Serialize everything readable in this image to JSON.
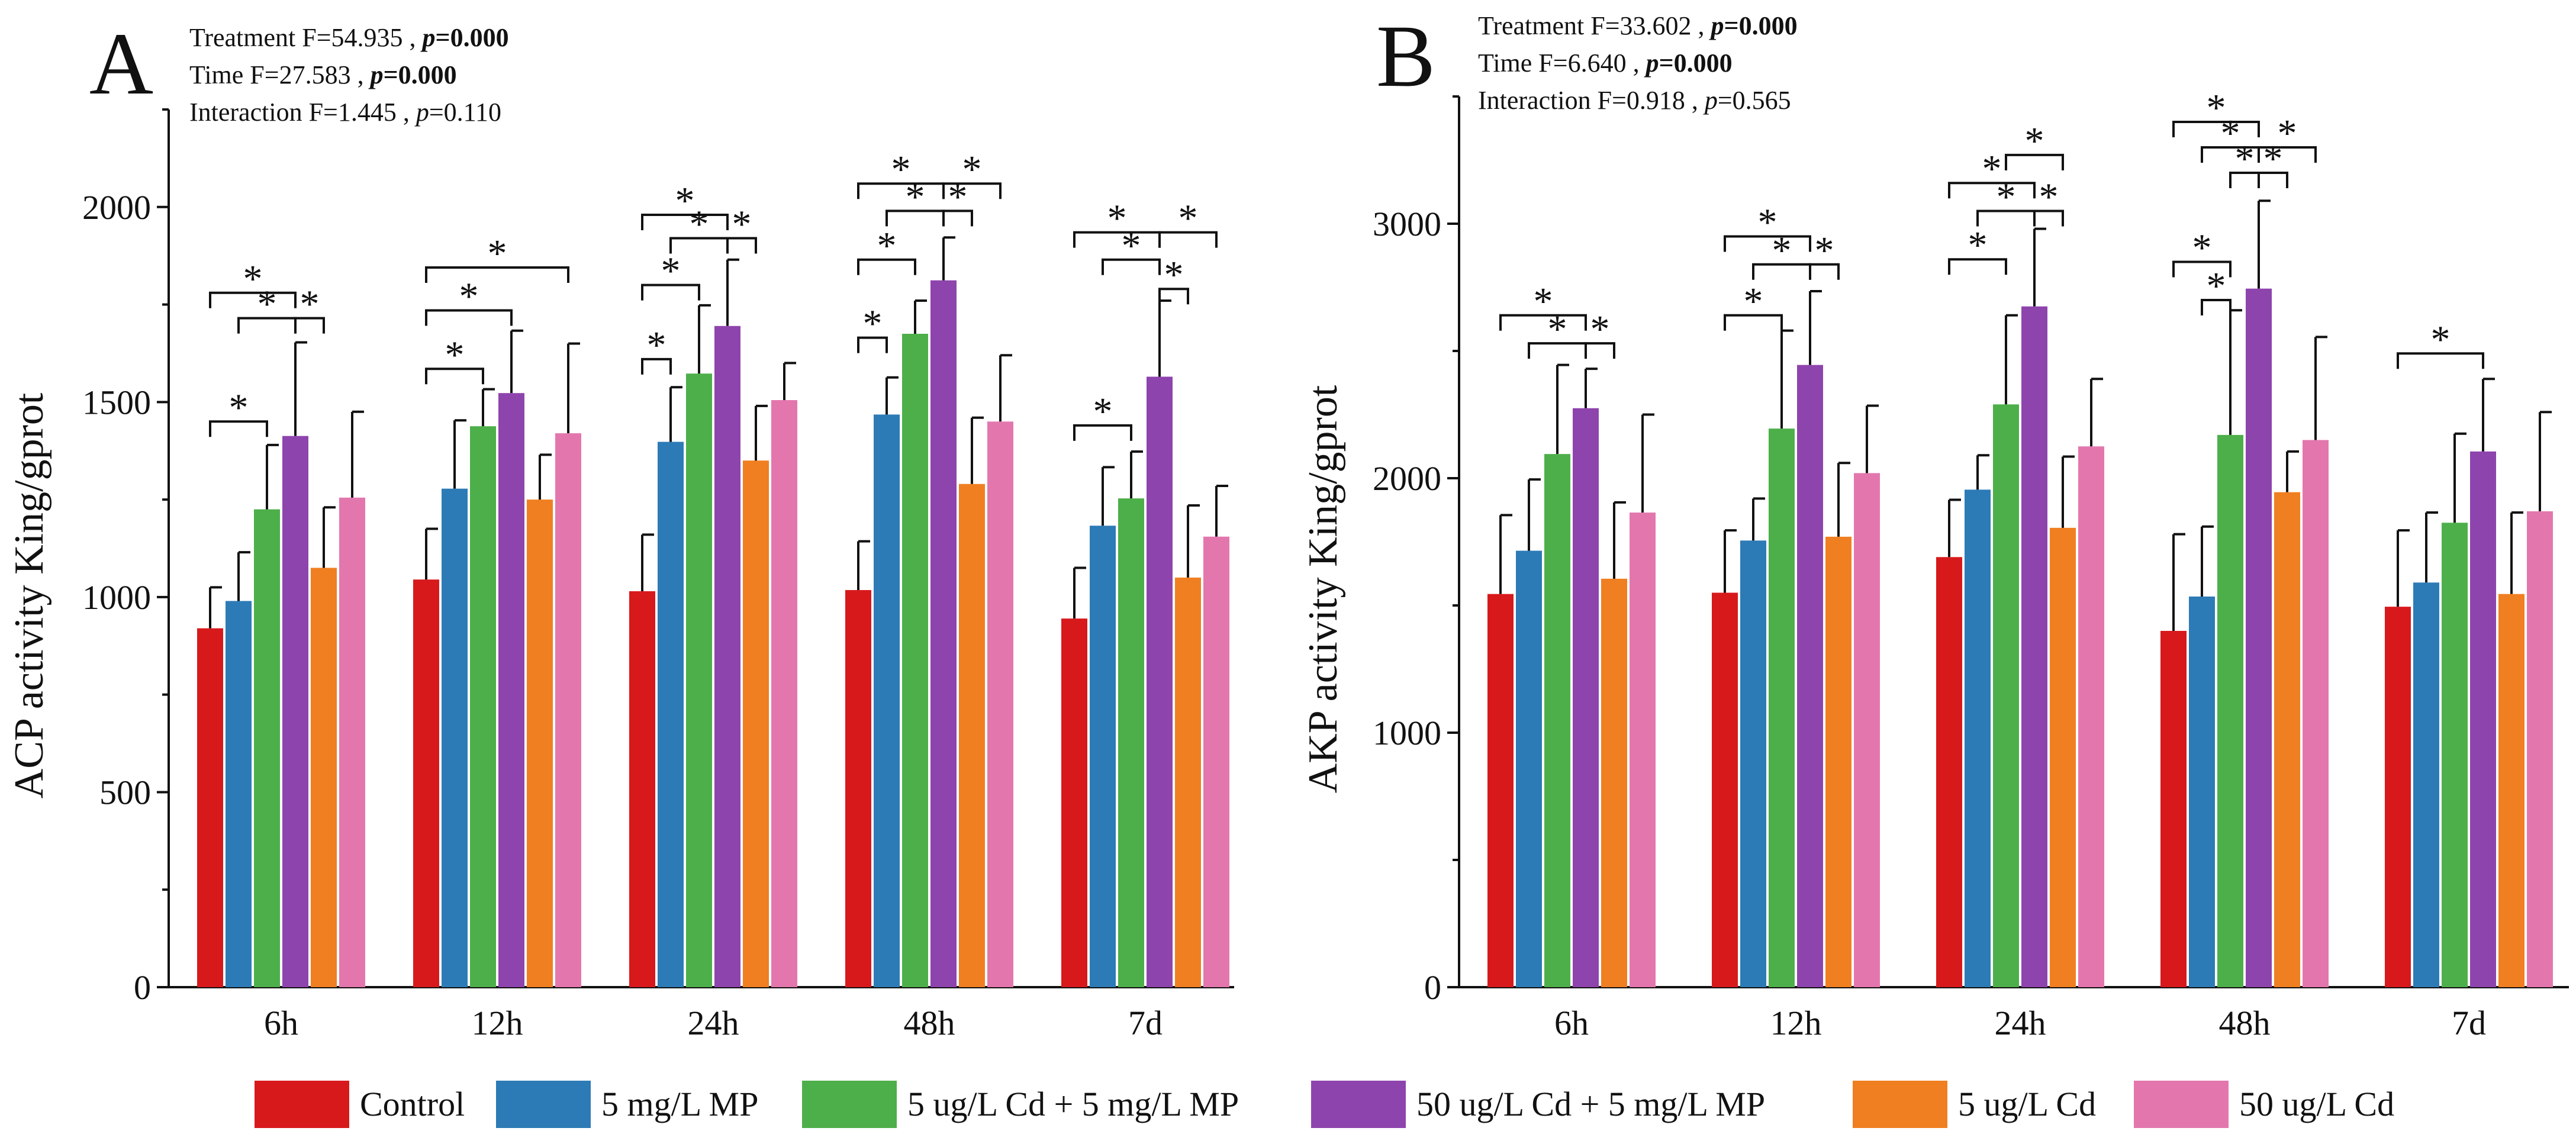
{
  "legend": [
    {
      "label": "Control",
      "color": "#d7191c"
    },
    {
      "label": "5 mg/L MP",
      "color": "#2c7bb6"
    },
    {
      "label": "5 ug/L Cd + 5 mg/L MP",
      "color": "#4daf4a"
    },
    {
      "label": "50 ug/L Cd + 5 mg/L MP",
      "color": "#8e44ad"
    },
    {
      "label": "5 ug/L Cd",
      "color": "#f07f21"
    },
    {
      "label": "50 ug/L Cd",
      "color": "#e377ad"
    }
  ],
  "chart_data": [
    {
      "type": "bar",
      "panel_label": "A",
      "ylabel": "ACP activity  King/gprot",
      "ylim": [
        0,
        2250
      ],
      "yticks": [
        0,
        500,
        1000,
        1500,
        2000
      ],
      "categories": [
        "6h",
        "12h",
        "24h",
        "48h",
        "7d"
      ],
      "stats": [
        {
          "prefix": "Treatment F=54.935 , ",
          "p": "p",
          "value": "=0.000",
          "bold": true
        },
        {
          "prefix": "Time F=27.583 , ",
          "p": "p",
          "value": "=0.000",
          "bold": true
        },
        {
          "prefix": "Interaction F=1.445 , ",
          "p": "p",
          "value": "=0.110",
          "bold": false
        }
      ],
      "series": [
        {
          "name": "Control",
          "values": [
            920,
            1045,
            1015,
            1018,
            945
          ],
          "errors": [
            105,
            130,
            145,
            125,
            130
          ]
        },
        {
          "name": "5 mg/L MP",
          "values": [
            990,
            1278,
            1398,
            1468,
            1183
          ],
          "errors": [
            125,
            175,
            140,
            95,
            150
          ]
        },
        {
          "name": "5 ug/L Cd + 5 mg/L MP",
          "values": [
            1225,
            1438,
            1573,
            1675,
            1253
          ],
          "errors": [
            165,
            95,
            175,
            85,
            120
          ]
        },
        {
          "name": "50 ug/L Cd + 5 mg/L MP",
          "values": [
            1413,
            1523,
            1695,
            1812,
            1565
          ],
          "errors": [
            240,
            160,
            170,
            110,
            195
          ]
        },
        {
          "name": "5 ug/L Cd",
          "values": [
            1075,
            1250,
            1350,
            1290,
            1050
          ],
          "errors": [
            155,
            115,
            140,
            170,
            185
          ]
        },
        {
          "name": "50 ug/L Cd",
          "values": [
            1255,
            1420,
            1505,
            1450,
            1155
          ],
          "errors": [
            220,
            230,
            95,
            170,
            130
          ]
        }
      ],
      "significance": [
        {
          "group": 0,
          "from": 0,
          "to": 3,
          "level": 1780,
          "label": "*"
        },
        {
          "group": 0,
          "from": 1,
          "to": 3,
          "level": 1715,
          "label": "*"
        },
        {
          "group": 0,
          "from": 3,
          "to": 4,
          "level": 1715,
          "label": "*"
        },
        {
          "group": 0,
          "from": 0,
          "to": 2,
          "level": 1450,
          "label": "*"
        },
        {
          "group": 1,
          "from": 0,
          "to": 5,
          "level": 1845,
          "label": "*"
        },
        {
          "group": 1,
          "from": 0,
          "to": 3,
          "level": 1735,
          "label": "*"
        },
        {
          "group": 1,
          "from": 0,
          "to": 2,
          "level": 1585,
          "label": "*"
        },
        {
          "group": 2,
          "from": 0,
          "to": 3,
          "level": 1980,
          "label": "*"
        },
        {
          "group": 2,
          "from": 1,
          "to": 3,
          "level": 1920,
          "label": "*"
        },
        {
          "group": 2,
          "from": 3,
          "to": 4,
          "level": 1920,
          "label": "*"
        },
        {
          "group": 2,
          "from": 0,
          "to": 2,
          "level": 1800,
          "label": "*"
        },
        {
          "group": 2,
          "from": 0,
          "to": 1,
          "level": 1610,
          "label": "*"
        },
        {
          "group": 3,
          "from": 0,
          "to": 3,
          "level": 2060,
          "label": "*"
        },
        {
          "group": 3,
          "from": 3,
          "to": 5,
          "level": 2060,
          "label": "*"
        },
        {
          "group": 3,
          "from": 1,
          "to": 3,
          "level": 1990,
          "label": "*"
        },
        {
          "group": 3,
          "from": 3,
          "to": 4,
          "level": 1990,
          "label": "*"
        },
        {
          "group": 3,
          "from": 0,
          "to": 2,
          "level": 1865,
          "label": "*"
        },
        {
          "group": 3,
          "from": 0,
          "to": 1,
          "level": 1665,
          "label": "*"
        },
        {
          "group": 4,
          "from": 0,
          "to": 3,
          "level": 1935,
          "label": "*"
        },
        {
          "group": 4,
          "from": 3,
          "to": 5,
          "level": 1935,
          "label": "*"
        },
        {
          "group": 4,
          "from": 1,
          "to": 3,
          "level": 1865,
          "label": "*"
        },
        {
          "group": 4,
          "from": 3,
          "to": 4,
          "level": 1790,
          "label": "*"
        },
        {
          "group": 4,
          "from": 0,
          "to": 2,
          "level": 1440,
          "label": "*"
        }
      ]
    },
    {
      "type": "bar",
      "panel_label": "B",
      "ylabel": "AKP activity  King/gprot",
      "ylim": [
        0,
        3500
      ],
      "yticks": [
        0,
        1000,
        2000,
        3000
      ],
      "categories": [
        "6h",
        "12h",
        "24h",
        "48h",
        "7d"
      ],
      "stats": [
        {
          "prefix": "Treatment F=33.602 , ",
          "p": "p",
          "value": "=0.000",
          "bold": true
        },
        {
          "prefix": "Time F=6.640 , ",
          "p": "p",
          "value": "=0.000",
          "bold": true
        },
        {
          "prefix": "Interaction F=0.918 , ",
          "p": "p",
          "value": "=0.565",
          "bold": false
        }
      ],
      "series": [
        {
          "name": "Control",
          "values": [
            1545,
            1550,
            1690,
            1400,
            1495
          ],
          "errors": [
            310,
            245,
            225,
            380,
            300
          ]
        },
        {
          "name": "5 mg/L MP",
          "values": [
            1715,
            1755,
            1955,
            1535,
            1590
          ],
          "errors": [
            280,
            165,
            135,
            275,
            275
          ]
        },
        {
          "name": "5 ug/L Cd + 5 mg/L MP",
          "values": [
            2095,
            2195,
            2290,
            2170,
            1825
          ],
          "errors": [
            350,
            385,
            350,
            490,
            350
          ]
        },
        {
          "name": "50 ug/L Cd + 5 mg/L MP",
          "values": [
            2275,
            2445,
            2675,
            2745,
            2105
          ],
          "errors": [
            155,
            290,
            305,
            345,
            285
          ]
        },
        {
          "name": "5 ug/L Cd",
          "values": [
            1605,
            1770,
            1805,
            1945,
            1545
          ],
          "errors": [
            300,
            290,
            280,
            160,
            320
          ]
        },
        {
          "name": "50 ug/L Cd",
          "values": [
            1865,
            2020,
            2125,
            2150,
            1870
          ],
          "errors": [
            385,
            265,
            265,
            405,
            390
          ]
        }
      ],
      "significance": [
        {
          "group": 0,
          "from": 0,
          "to": 3,
          "level": 2640,
          "label": "*"
        },
        {
          "group": 0,
          "from": 1,
          "to": 3,
          "level": 2530,
          "label": "*"
        },
        {
          "group": 0,
          "from": 3,
          "to": 4,
          "level": 2530,
          "label": "*"
        },
        {
          "group": 1,
          "from": 0,
          "to": 3,
          "level": 2950,
          "label": "*"
        },
        {
          "group": 1,
          "from": 1,
          "to": 3,
          "level": 2840,
          "label": "*"
        },
        {
          "group": 1,
          "from": 3,
          "to": 4,
          "level": 2840,
          "label": "*"
        },
        {
          "group": 1,
          "from": 0,
          "to": 2,
          "level": 2640,
          "label": "*"
        },
        {
          "group": 2,
          "from": 0,
          "to": 3,
          "level": 3160,
          "label": "*"
        },
        {
          "group": 2,
          "from": 2,
          "to": 4,
          "level": 3270,
          "label": "*"
        },
        {
          "group": 2,
          "from": 1,
          "to": 3,
          "level": 3050,
          "label": "*"
        },
        {
          "group": 2,
          "from": 3,
          "to": 4,
          "level": 3050,
          "label": "*"
        },
        {
          "group": 2,
          "from": 0,
          "to": 2,
          "level": 2860,
          "label": "*"
        },
        {
          "group": 3,
          "from": 0,
          "to": 3,
          "level": 3400,
          "label": "*"
        },
        {
          "group": 3,
          "from": 1,
          "to": 3,
          "level": 3300,
          "label": "*"
        },
        {
          "group": 3,
          "from": 3,
          "to": 5,
          "level": 3300,
          "label": "*"
        },
        {
          "group": 3,
          "from": 2,
          "to": 3,
          "level": 3200,
          "label": "*"
        },
        {
          "group": 3,
          "from": 3,
          "to": 4,
          "level": 3200,
          "label": "*"
        },
        {
          "group": 3,
          "from": 0,
          "to": 2,
          "level": 2850,
          "label": "*"
        },
        {
          "group": 3,
          "from": 1,
          "to": 2,
          "level": 2700,
          "label": "*"
        },
        {
          "group": 4,
          "from": 0,
          "to": 3,
          "level": 2490,
          "label": "*"
        }
      ]
    }
  ]
}
